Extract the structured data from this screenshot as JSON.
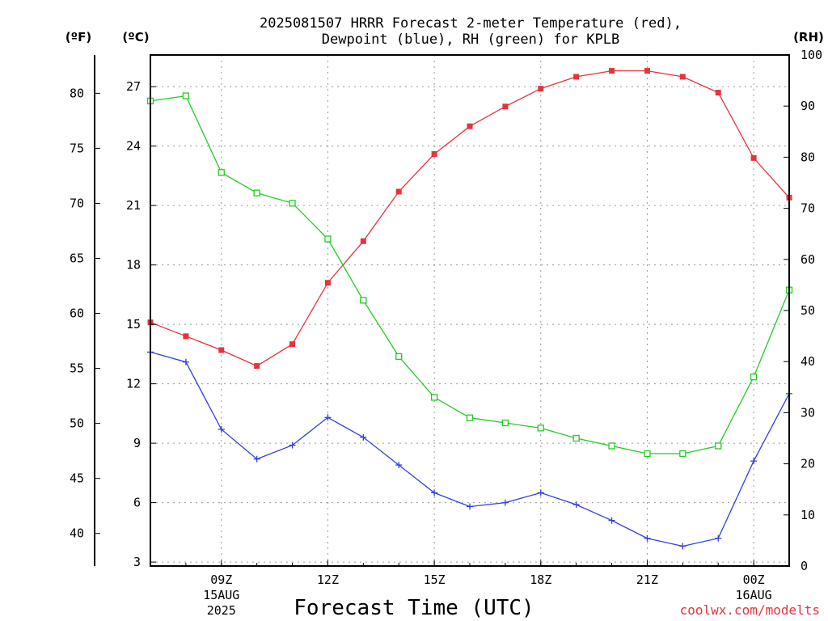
{
  "chart_data": {
    "type": "line",
    "title_line1": "2025081507 HRRR Forecast 2-meter Temperature (red),",
    "title_line2": "Dewpoint (blue), RH (green) for KPLB",
    "xlabel": "Forecast Time (UTC)",
    "credit": "coolwx.com/modelts",
    "units": {
      "fahrenheit": "(ºF)",
      "celsius": "(ºC)",
      "rh": "(RH)"
    },
    "x_hours": [
      7,
      8,
      9,
      10,
      11,
      12,
      13,
      14,
      15,
      16,
      17,
      18,
      19,
      20,
      21,
      22,
      23,
      24,
      25
    ],
    "xlim": [
      7,
      25
    ],
    "x_ticks": [
      {
        "hour": 9,
        "label": "09Z",
        "sub1": "15AUG",
        "sub2": "2025"
      },
      {
        "hour": 12,
        "label": "12Z",
        "sub1": "",
        "sub2": ""
      },
      {
        "hour": 15,
        "label": "15Z",
        "sub1": "",
        "sub2": ""
      },
      {
        "hour": 18,
        "label": "18Z",
        "sub1": "",
        "sub2": ""
      },
      {
        "hour": 21,
        "label": "21Z",
        "sub1": "",
        "sub2": ""
      },
      {
        "hour": 24,
        "label": "00Z",
        "sub1": "16AUG",
        "sub2": ""
      }
    ],
    "celsius_axis": {
      "lim": [
        2.8,
        28.6
      ],
      "ticks": [
        "3",
        "6",
        "9",
        "12",
        "15",
        "18",
        "21",
        "24",
        "27"
      ]
    },
    "fahrenheit_axis": {
      "ticks": [
        "40",
        "45",
        "50",
        "55",
        "60",
        "65",
        "70",
        "75",
        "80"
      ]
    },
    "rh_axis": {
      "lim": [
        0,
        100
      ],
      "ticks": [
        "0",
        "10",
        "20",
        "30",
        "40",
        "50",
        "60",
        "70",
        "80",
        "90",
        "100"
      ]
    },
    "series": [
      {
        "key": "temperature",
        "color": "#e8323c",
        "marker": "filled-square",
        "axis": "celsius",
        "values": [
          15.1,
          14.4,
          13.7,
          12.9,
          14.0,
          17.1,
          19.2,
          21.7,
          23.6,
          25.0,
          26.0,
          26.9,
          27.5,
          27.8,
          27.8,
          27.5,
          26.7,
          23.4,
          21.4
        ]
      },
      {
        "key": "dewpoint",
        "color": "#3040e0",
        "marker": "plus",
        "axis": "celsius",
        "values": [
          13.6,
          13.1,
          9.7,
          8.2,
          8.9,
          10.3,
          9.3,
          7.9,
          6.5,
          5.8,
          6.0,
          6.5,
          5.9,
          5.1,
          4.2,
          3.8,
          4.2,
          8.1,
          11.5
        ]
      },
      {
        "key": "rh",
        "color": "#22cc22",
        "marker": "open-square",
        "axis": "rh",
        "values": [
          91,
          92,
          77,
          73,
          71,
          64,
          52,
          41,
          33,
          29,
          28,
          27,
          25,
          23.5,
          22,
          22,
          23.5,
          37,
          54
        ]
      }
    ]
  }
}
